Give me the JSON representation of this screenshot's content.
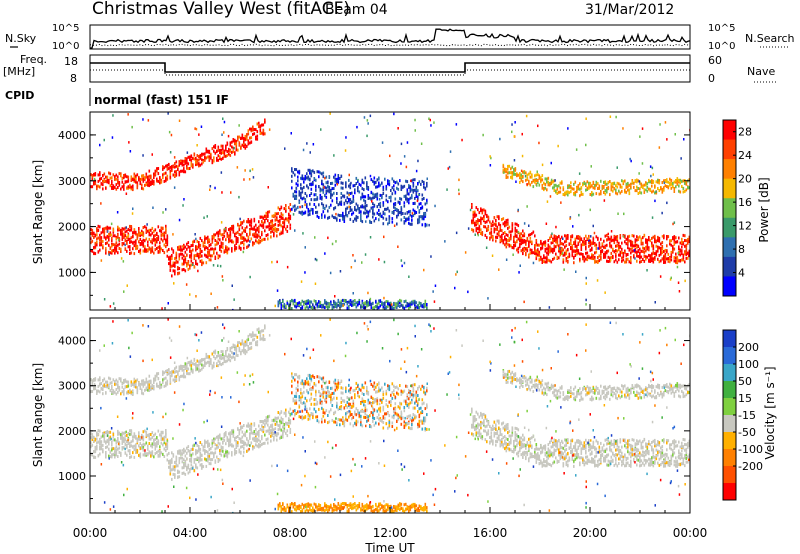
{
  "header": {
    "title": "Christmas Valley West (fitACF)",
    "beam": "Beam 04",
    "date": "31/Mar/2012"
  },
  "nsky_panel": {
    "left_label": "N.Sky",
    "right_label": "N.Search",
    "left_ticks": [
      "10^5",
      "10^0"
    ],
    "right_ticks": [
      "10^5",
      "10^0"
    ]
  },
  "freq_panel": {
    "left_label_1": "Freq.",
    "left_label_2": "[MHz]",
    "right_label": "Nave",
    "left_ticks": [
      "18",
      "8"
    ],
    "right_ticks": [
      "60",
      "0"
    ]
  },
  "cpid": {
    "label": "CPID",
    "mode": "normal (fast) 151 IF"
  },
  "colors": {
    "power": [
      "#0000ff",
      "#1e3ca8",
      "#2e6fb0",
      "#3a9a6a",
      "#6fbf4a",
      "#f5b800",
      "#ff8000",
      "#ff4000",
      "#ff0000"
    ],
    "velocity": [
      "#1a3fc8",
      "#2a6ad8",
      "#3aa6c8",
      "#40b040",
      "#7fd040",
      "#c8c8c0",
      "#ffb000",
      "#ff8000",
      "#ff5000",
      "#ff0000"
    ]
  },
  "chart_data": [
    {
      "type": "heatmap",
      "name": "power",
      "ylabel": "Slant Range [km]",
      "yticks": [
        "1000",
        "2000",
        "3000",
        "4000"
      ],
      "ylim": [
        180,
        4500
      ],
      "xlim": [
        0,
        24
      ],
      "colorbar": {
        "label": "Power [dB]",
        "ticks": [
          "4",
          "8",
          "12",
          "16",
          "20",
          "24",
          "28"
        ],
        "range": [
          0,
          30
        ]
      },
      "echo_bands": [
        {
          "points": [
            [
              0,
              1700
            ],
            [
              3,
              1700
            ],
            [
              3.2,
              1200
            ],
            [
              8,
              2200
            ]
          ],
          "width": 300,
          "level": "high"
        },
        {
          "points": [
            [
              0,
              3000
            ],
            [
              2,
              2950
            ],
            [
              6,
              3800
            ],
            [
              7,
              4200
            ]
          ],
          "width": 180,
          "level": "high"
        },
        {
          "points": [
            [
              8,
              2800
            ],
            [
              10,
              2600
            ],
            [
              13.5,
              2500
            ]
          ],
          "width": 500,
          "level": "low"
        },
        {
          "points": [
            [
              15.2,
              2200
            ],
            [
              18,
              1500
            ],
            [
              24,
              1500
            ]
          ],
          "width": 300,
          "level": "high"
        },
        {
          "points": [
            [
              16.5,
              3200
            ],
            [
              19,
              2800
            ],
            [
              24,
              2900
            ]
          ],
          "width": 150,
          "level": "mid"
        }
      ]
    },
    {
      "type": "heatmap",
      "name": "velocity",
      "ylabel": "Slant Range [km]",
      "yticks": [
        "1000",
        "2000",
        "3000",
        "4000"
      ],
      "ylim": [
        180,
        4500
      ],
      "xlim": [
        0,
        24
      ],
      "xlabel": "Time UT",
      "xticks": [
        "00:00",
        "04:00",
        "08:00",
        "12:00",
        "16:00",
        "20:00",
        "00:00"
      ],
      "colorbar": {
        "label": "Velocity [m s⁻¹]",
        "ticks": [
          "200",
          "100",
          "50",
          "15",
          "-15",
          "-50",
          "-100",
          "-200"
        ],
        "range": [
          -250,
          250
        ]
      }
    }
  ]
}
